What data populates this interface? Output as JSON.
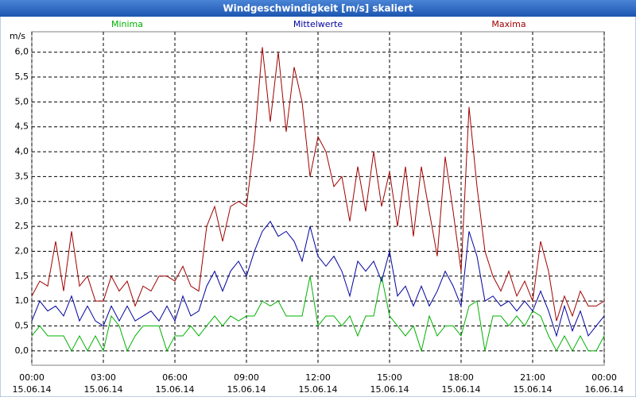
{
  "chart_data": {
    "type": "line",
    "title": "Windgeschwindigkeit [m/s] skaliert",
    "y_label": "m/s",
    "xlim": [
      0,
      1440
    ],
    "xticks": [
      {
        "value": 0,
        "label": "00:00",
        "date": "15.06.14"
      },
      {
        "value": 180,
        "label": "03:00",
        "date": "15.06.14"
      },
      {
        "value": 360,
        "label": "06:00",
        "date": "15.06.14"
      },
      {
        "value": 540,
        "label": "09:00",
        "date": "15.06.14"
      },
      {
        "value": 720,
        "label": "12:00",
        "date": "15.06.14"
      },
      {
        "value": 900,
        "label": "15:00",
        "date": "15.06.14"
      },
      {
        "value": 1080,
        "label": "18:00",
        "date": "15.06.14"
      },
      {
        "value": 1260,
        "label": "21:00",
        "date": "15.06.14"
      },
      {
        "value": 1440,
        "label": "00:00",
        "date": "16.06.14"
      }
    ],
    "ylim": [
      -0.29,
      6.41
    ],
    "yticks": [
      {
        "value": 0,
        "label": "0,0"
      },
      {
        "value": 0.5,
        "label": "0,5"
      },
      {
        "value": 1,
        "label": "1,0"
      },
      {
        "value": 1.5,
        "label": "1,5"
      },
      {
        "value": 2,
        "label": "2,0"
      },
      {
        "value": 2.5,
        "label": "2,5"
      },
      {
        "value": 3,
        "label": "3,0"
      },
      {
        "value": 3.5,
        "label": "3,5"
      },
      {
        "value": 4,
        "label": "4,0"
      },
      {
        "value": 4.5,
        "label": "4,5"
      },
      {
        "value": 5,
        "label": "5,0"
      },
      {
        "value": 5.5,
        "label": "5,5"
      },
      {
        "value": 6,
        "label": "6,0"
      }
    ],
    "grid": true,
    "x": [
      0,
      20,
      40,
      60,
      80,
      100,
      120,
      140,
      160,
      180,
      200,
      220,
      240,
      260,
      280,
      300,
      320,
      340,
      360,
      380,
      400,
      420,
      440,
      460,
      480,
      500,
      520,
      540,
      560,
      580,
      600,
      620,
      640,
      660,
      680,
      700,
      720,
      740,
      760,
      780,
      800,
      820,
      840,
      860,
      880,
      900,
      920,
      940,
      960,
      980,
      1000,
      1020,
      1040,
      1060,
      1080,
      1100,
      1120,
      1140,
      1160,
      1180,
      1200,
      1220,
      1240,
      1260,
      1280,
      1300,
      1320,
      1340,
      1360,
      1380,
      1400,
      1420,
      1440
    ],
    "series": [
      {
        "name": "Minima",
        "color": "#00b000",
        "values": [
          0.3,
          0.5,
          0.3,
          0.3,
          0.3,
          0.0,
          0.3,
          0.0,
          0.3,
          0.0,
          0.7,
          0.5,
          0.0,
          0.3,
          0.5,
          0.5,
          0.5,
          0.0,
          0.3,
          0.3,
          0.5,
          0.3,
          0.5,
          0.7,
          0.5,
          0.7,
          0.6,
          0.7,
          0.7,
          1.0,
          0.9,
          1.0,
          0.7,
          0.7,
          0.7,
          1.5,
          0.5,
          0.7,
          0.7,
          0.5,
          0.7,
          0.3,
          0.7,
          0.7,
          1.5,
          0.7,
          0.5,
          0.3,
          0.5,
          0.0,
          0.7,
          0.3,
          0.5,
          0.5,
          0.3,
          0.9,
          1.0,
          0.0,
          0.7,
          0.7,
          0.5,
          0.7,
          0.5,
          0.8,
          0.7,
          0.3,
          0.0,
          0.3,
          0.0,
          0.3,
          0.0,
          0.0,
          0.3
        ]
      },
      {
        "name": "Mittelwerte",
        "color": "#0000a0",
        "values": [
          0.6,
          1.0,
          0.8,
          0.9,
          0.7,
          1.1,
          0.6,
          0.9,
          0.6,
          0.5,
          0.9,
          0.6,
          0.9,
          0.6,
          0.7,
          0.8,
          0.6,
          0.9,
          0.6,
          1.1,
          0.7,
          0.8,
          1.3,
          1.6,
          1.2,
          1.6,
          1.8,
          1.5,
          2.0,
          2.4,
          2.6,
          2.3,
          2.4,
          2.2,
          1.8,
          2.5,
          1.9,
          1.7,
          1.9,
          1.6,
          1.1,
          1.8,
          1.6,
          1.8,
          1.4,
          2.0,
          1.1,
          1.3,
          0.9,
          1.3,
          0.9,
          1.2,
          1.6,
          1.3,
          0.9,
          2.4,
          1.9,
          1.0,
          1.1,
          0.9,
          1.0,
          0.8,
          1.0,
          0.8,
          1.2,
          0.8,
          0.3,
          0.9,
          0.4,
          0.8,
          0.3,
          0.5,
          0.7
        ]
      },
      {
        "name": "Maxima",
        "color": "#a00000",
        "values": [
          1.1,
          1.4,
          1.3,
          2.2,
          1.2,
          2.4,
          1.3,
          1.5,
          1.0,
          1.0,
          1.5,
          1.2,
          1.4,
          0.9,
          1.3,
          1.2,
          1.5,
          1.5,
          1.4,
          1.7,
          1.3,
          1.2,
          2.5,
          2.9,
          2.2,
          2.9,
          3.0,
          2.9,
          4.2,
          6.1,
          4.6,
          6.0,
          4.4,
          5.7,
          5.0,
          3.5,
          4.3,
          4.0,
          3.3,
          3.5,
          2.6,
          3.7,
          2.8,
          4.0,
          2.9,
          3.6,
          2.5,
          3.7,
          2.3,
          3.7,
          2.8,
          1.9,
          3.9,
          2.8,
          1.6,
          4.9,
          3.3,
          2.0,
          1.5,
          1.2,
          1.6,
          1.1,
          1.4,
          1.0,
          2.2,
          1.6,
          0.6,
          1.1,
          0.7,
          1.2,
          0.9,
          0.9,
          1.0
        ]
      }
    ]
  }
}
